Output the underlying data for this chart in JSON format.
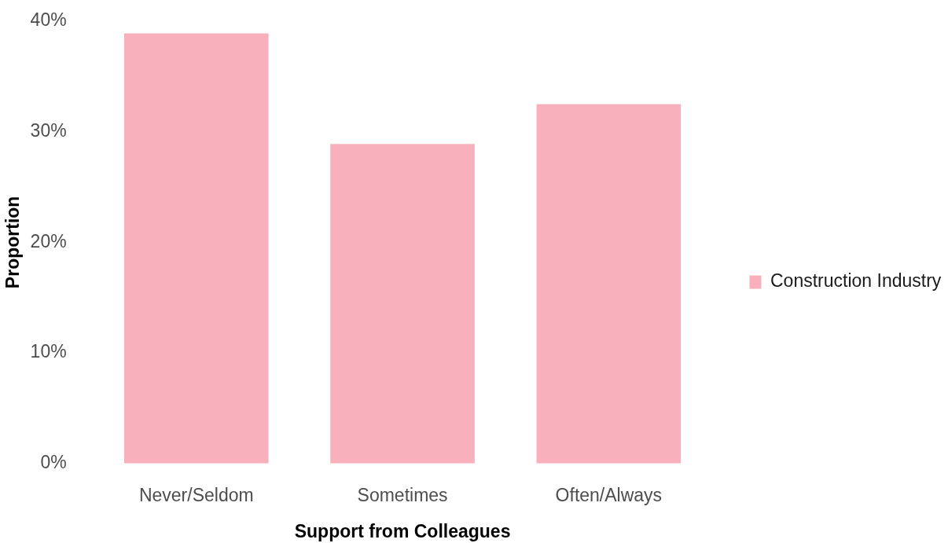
{
  "chart_data": {
    "type": "bar",
    "xlabel": "Support from Colleagues",
    "ylabel": "Proportion",
    "categories": [
      "Never/Seldom",
      "Sometimes",
      "Often/Always"
    ],
    "series": [
      {
        "name": "Construction Industry",
        "color": "#f8b1bc",
        "values": [
          38.9,
          28.9,
          32.5
        ]
      }
    ],
    "ylim": [
      0,
      40
    ],
    "yticks": [
      {
        "value": 0,
        "label": "0%"
      },
      {
        "value": 10,
        "label": "10%"
      },
      {
        "value": 20,
        "label": "20%"
      },
      {
        "value": 30,
        "label": "30%"
      },
      {
        "value": 40,
        "label": "40%"
      }
    ],
    "legend": "right"
  }
}
